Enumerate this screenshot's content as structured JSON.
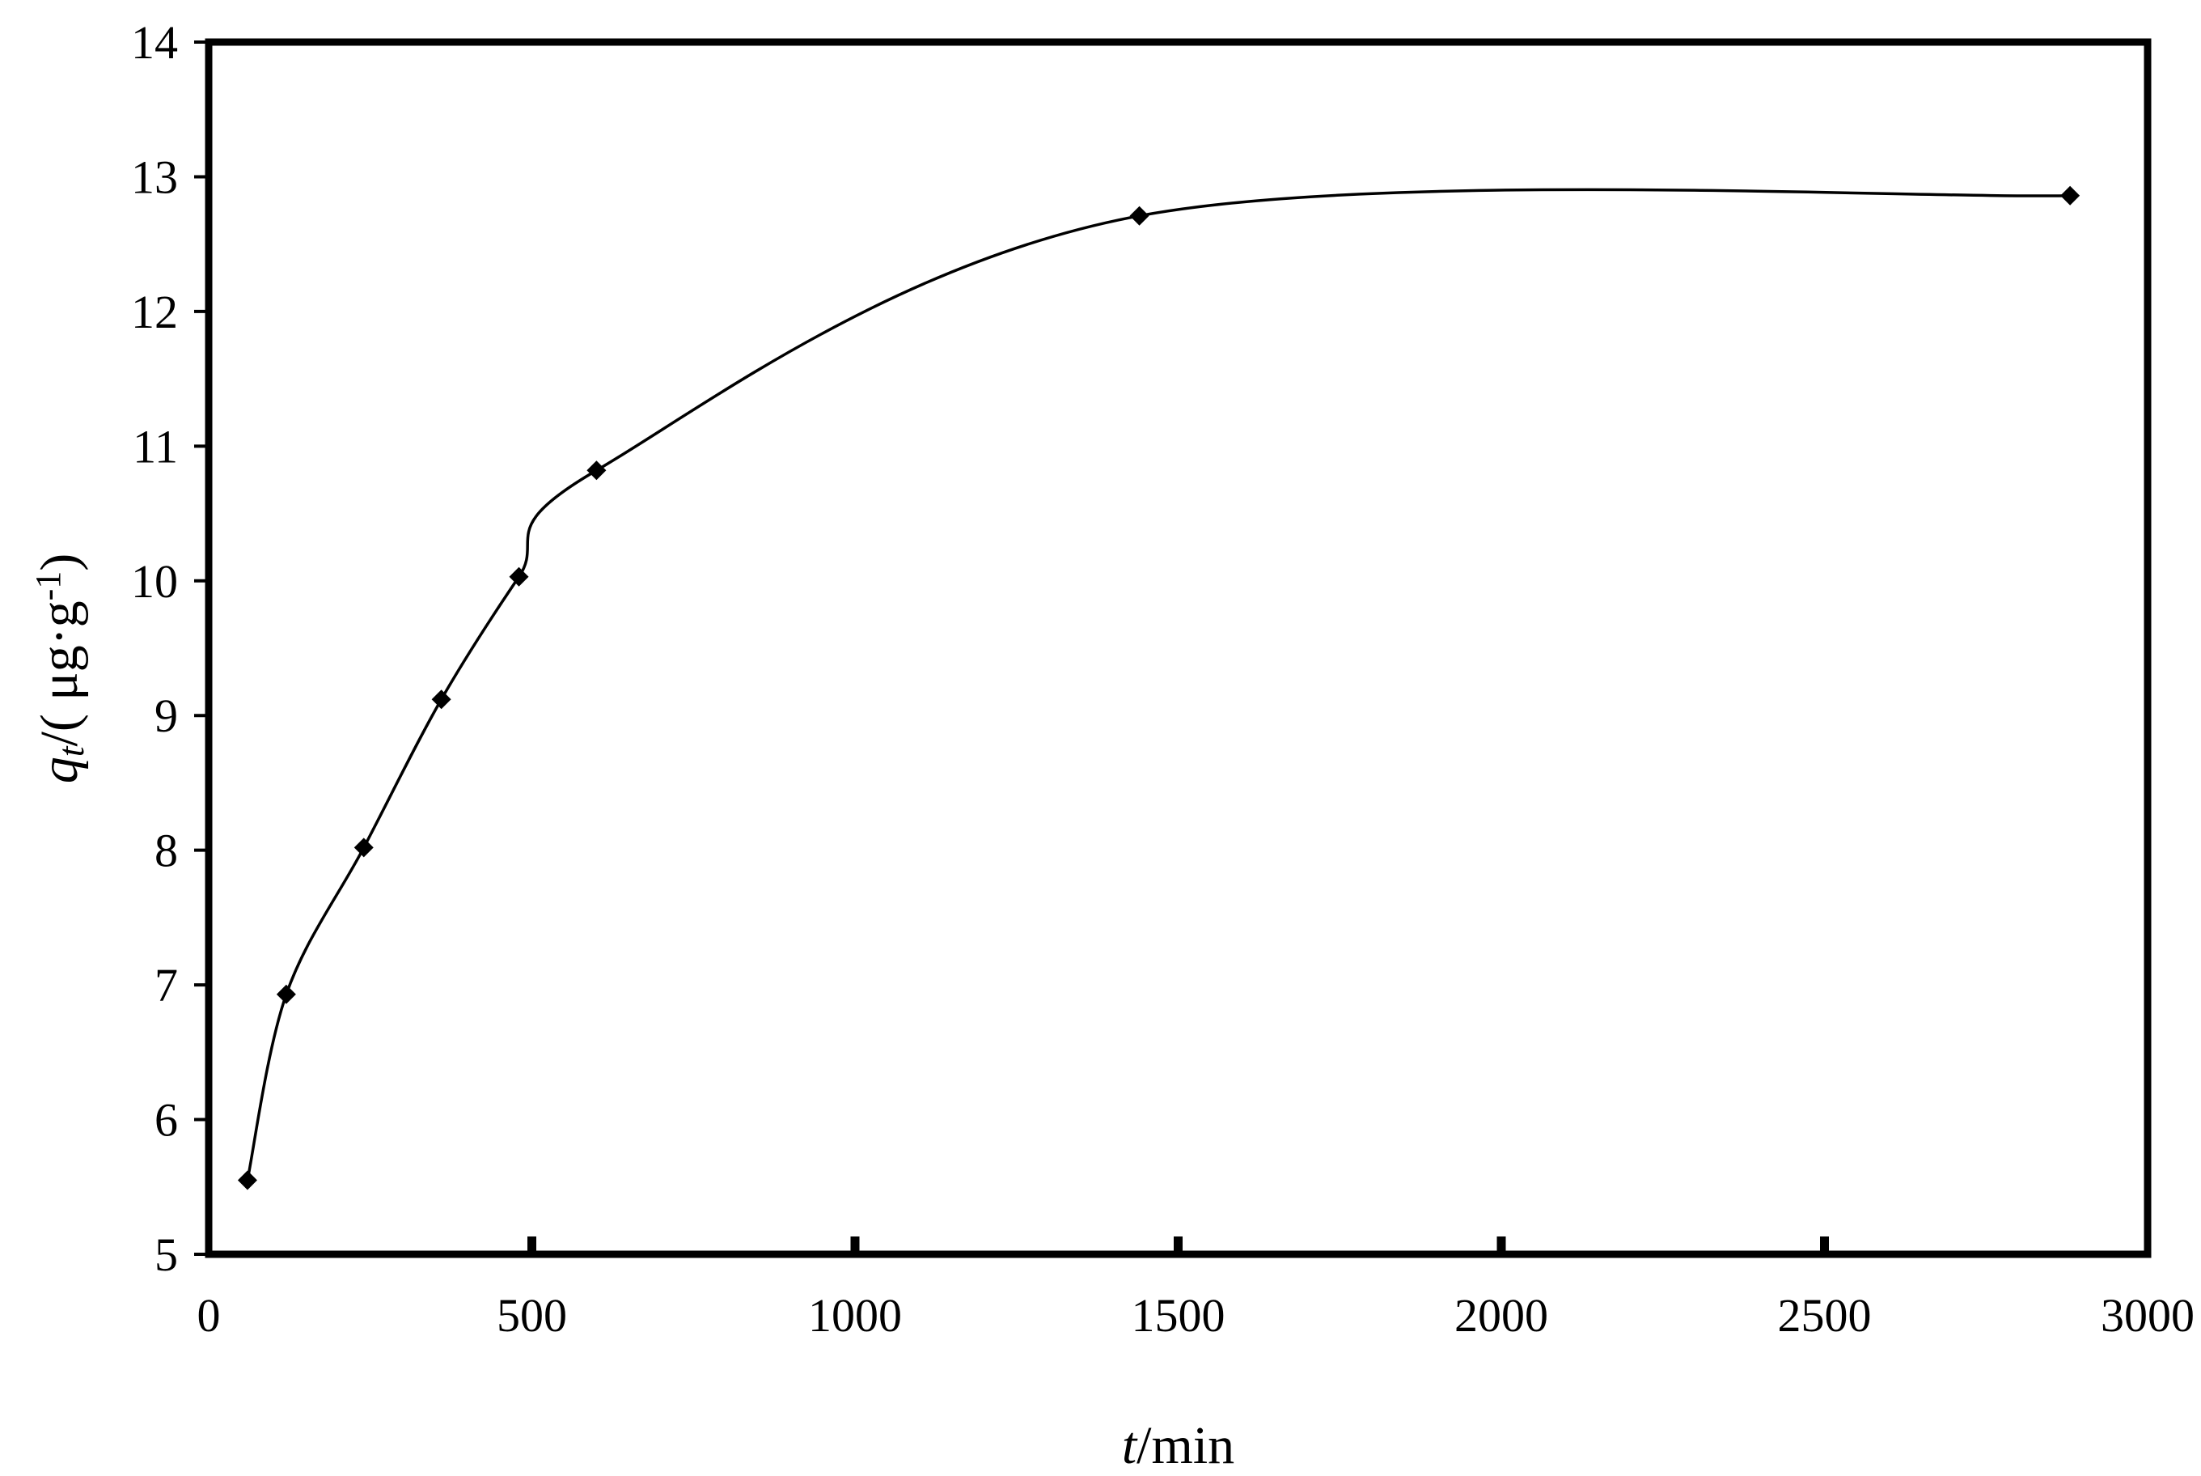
{
  "chart_data": {
    "type": "line",
    "title": "",
    "xlabel": {
      "symbol": "t",
      "unit": "/min"
    },
    "ylabel": {
      "symbol": "q",
      "subscript": "t",
      "unit_open": "/( μg·g",
      "unit_exponent": "-1",
      "unit_close": ")"
    },
    "xlim": [
      0,
      3000
    ],
    "ylim": [
      5,
      14
    ],
    "x_ticks": [
      0,
      500,
      1000,
      1500,
      2000,
      2500,
      3000
    ],
    "x_tick_labels": [
      "0",
      "500",
      "1000",
      "1500",
      "2000",
      "2500",
      "3000"
    ],
    "y_ticks": [
      5,
      6,
      7,
      8,
      9,
      10,
      11,
      12,
      13,
      14
    ],
    "y_tick_labels": [
      "5",
      "6",
      "7",
      "8",
      "9",
      "10",
      "11",
      "12",
      "13",
      "14"
    ],
    "grid": false,
    "legend": "none",
    "smoothed": true,
    "series": [
      {
        "marker": "diamond",
        "color": "#000000",
        "x": [
          60,
          120,
          240,
          360,
          480,
          600,
          1440,
          2880
        ],
        "y": [
          5.55,
          6.93,
          8.02,
          9.12,
          10.03,
          10.82,
          12.71,
          12.86
        ]
      }
    ]
  }
}
